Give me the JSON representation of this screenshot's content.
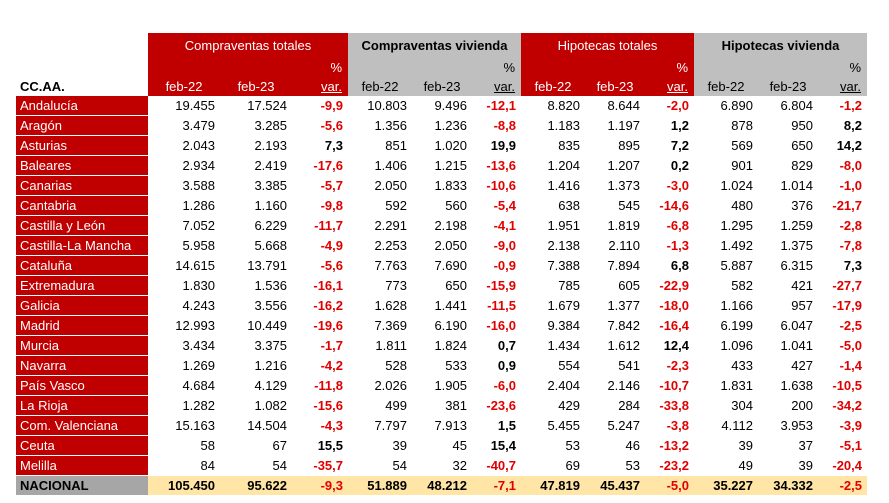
{
  "title": "",
  "header": {
    "region_label": "CC.AA.",
    "groups": [
      "Compraventas totales",
      "Compraventas vivienda",
      "Hipotecas totales",
      "Hipotecas vivienda"
    ],
    "col_a": "feb-22",
    "col_b": "feb-23",
    "pct_top": "%",
    "pct_bottom": "var."
  },
  "rows": [
    {
      "region": "Andalucía",
      "v": [
        "19.455",
        "17.524",
        "-9,9",
        "10.803",
        "9.496",
        "-12,1",
        "8.820",
        "8.644",
        "-2,0",
        "6.890",
        "6.804",
        "-1,2"
      ]
    },
    {
      "region": "Aragón",
      "v": [
        "3.479",
        "3.285",
        "-5,6",
        "1.356",
        "1.236",
        "-8,8",
        "1.183",
        "1.197",
        "1,2",
        "878",
        "950",
        "8,2"
      ]
    },
    {
      "region": "Asturias",
      "v": [
        "2.043",
        "2.193",
        "7,3",
        "851",
        "1.020",
        "19,9",
        "835",
        "895",
        "7,2",
        "569",
        "650",
        "14,2"
      ]
    },
    {
      "region": "Baleares",
      "v": [
        "2.934",
        "2.419",
        "-17,6",
        "1.406",
        "1.215",
        "-13,6",
        "1.204",
        "1.207",
        "0,2",
        "901",
        "829",
        "-8,0"
      ]
    },
    {
      "region": "Canarias",
      "v": [
        "3.588",
        "3.385",
        "-5,7",
        "2.050",
        "1.833",
        "-10,6",
        "1.416",
        "1.373",
        "-3,0",
        "1.024",
        "1.014",
        "-1,0"
      ]
    },
    {
      "region": "Cantabria",
      "v": [
        "1.286",
        "1.160",
        "-9,8",
        "592",
        "560",
        "-5,4",
        "638",
        "545",
        "-14,6",
        "480",
        "376",
        "-21,7"
      ]
    },
    {
      "region": "Castilla y León",
      "v": [
        "7.052",
        "6.229",
        "-11,7",
        "2.291",
        "2.198",
        "-4,1",
        "1.951",
        "1.819",
        "-6,8",
        "1.295",
        "1.259",
        "-2,8"
      ]
    },
    {
      "region": "Castilla-La Mancha",
      "v": [
        "5.958",
        "5.668",
        "-4,9",
        "2.253",
        "2.050",
        "-9,0",
        "2.138",
        "2.110",
        "-1,3",
        "1.492",
        "1.375",
        "-7,8"
      ]
    },
    {
      "region": "Cataluña",
      "v": [
        "14.615",
        "13.791",
        "-5,6",
        "7.763",
        "7.690",
        "-0,9",
        "7.388",
        "7.894",
        "6,8",
        "5.887",
        "6.315",
        "7,3"
      ]
    },
    {
      "region": "Extremadura",
      "v": [
        "1.830",
        "1.536",
        "-16,1",
        "773",
        "650",
        "-15,9",
        "785",
        "605",
        "-22,9",
        "582",
        "421",
        "-27,7"
      ]
    },
    {
      "region": "Galicia",
      "v": [
        "4.243",
        "3.556",
        "-16,2",
        "1.628",
        "1.441",
        "-11,5",
        "1.679",
        "1.377",
        "-18,0",
        "1.166",
        "957",
        "-17,9"
      ]
    },
    {
      "region": "Madrid",
      "v": [
        "12.993",
        "10.449",
        "-19,6",
        "7.369",
        "6.190",
        "-16,0",
        "9.384",
        "7.842",
        "-16,4",
        "6.199",
        "6.047",
        "-2,5"
      ]
    },
    {
      "region": "Murcia",
      "v": [
        "3.434",
        "3.375",
        "-1,7",
        "1.811",
        "1.824",
        "0,7",
        "1.434",
        "1.612",
        "12,4",
        "1.096",
        "1.041",
        "-5,0"
      ]
    },
    {
      "region": "Navarra",
      "v": [
        "1.269",
        "1.216",
        "-4,2",
        "528",
        "533",
        "0,9",
        "554",
        "541",
        "-2,3",
        "433",
        "427",
        "-1,4"
      ]
    },
    {
      "region": "País Vasco",
      "v": [
        "4.684",
        "4.129",
        "-11,8",
        "2.026",
        "1.905",
        "-6,0",
        "2.404",
        "2.146",
        "-10,7",
        "1.831",
        "1.638",
        "-10,5"
      ]
    },
    {
      "region": "La Rioja",
      "v": [
        "1.282",
        "1.082",
        "-15,6",
        "499",
        "381",
        "-23,6",
        "429",
        "284",
        "-33,8",
        "304",
        "200",
        "-34,2"
      ]
    },
    {
      "region": "Com. Valenciana",
      "v": [
        "15.163",
        "14.504",
        "-4,3",
        "7.797",
        "7.913",
        "1,5",
        "5.455",
        "5.247",
        "-3,8",
        "4.112",
        "3.953",
        "-3,9"
      ]
    },
    {
      "region": "Ceuta",
      "v": [
        "58",
        "67",
        "15,5",
        "39",
        "45",
        "15,4",
        "53",
        "46",
        "-13,2",
        "39",
        "37",
        "-5,1"
      ]
    },
    {
      "region": "Melilla",
      "v": [
        "84",
        "54",
        "-35,7",
        "54",
        "32",
        "-40,7",
        "69",
        "53",
        "-23,2",
        "49",
        "39",
        "-20,4"
      ]
    }
  ],
  "total": {
    "region": "NACIONAL",
    "v": [
      "105.450",
      "95.622",
      "-9,3",
      "51.889",
      "48.212",
      "-7,1",
      "47.819",
      "45.437",
      "-5,0",
      "35.227",
      "34.332",
      "-2,5"
    ]
  }
}
